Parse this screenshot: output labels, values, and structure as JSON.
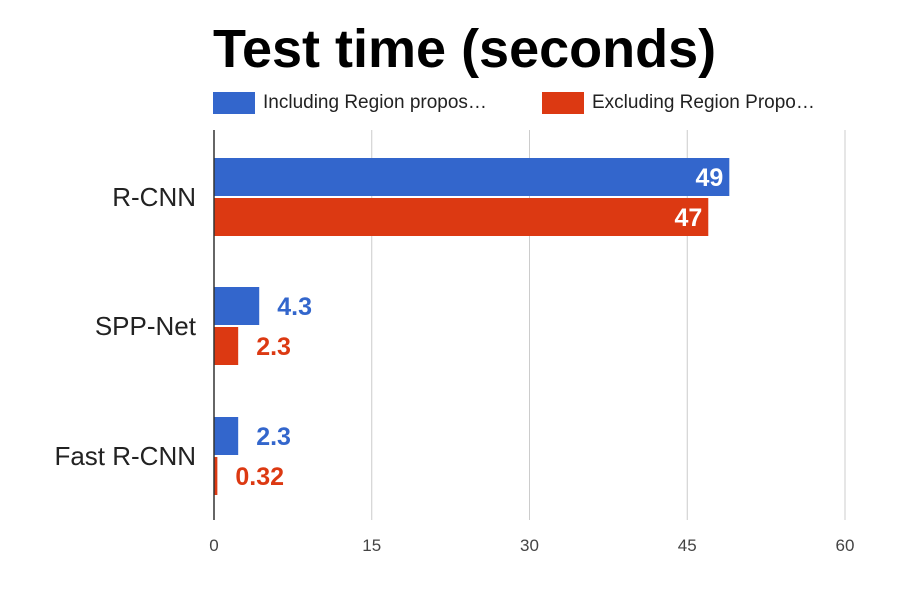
{
  "chart_data": {
    "type": "bar",
    "orientation": "horizontal",
    "title": "Test time (seconds)",
    "categories": [
      "R-CNN",
      "SPP-Net",
      "Fast R-CNN"
    ],
    "series": [
      {
        "name": "Including Region propos…",
        "values": [
          49,
          4.3,
          2.3
        ],
        "labels": [
          "49",
          "4.3",
          "2.3"
        ],
        "color": "#3366cc"
      },
      {
        "name": "Excluding Region Propo…",
        "values": [
          47,
          2.3,
          0.32
        ],
        "labels": [
          "47",
          "2.3",
          "0.32"
        ],
        "color": "#dc3912"
      }
    ],
    "xlim": [
      0,
      60
    ],
    "xticks": [
      "0",
      "15",
      "30",
      "45",
      "60"
    ],
    "grid": true,
    "legend_position": "top"
  }
}
